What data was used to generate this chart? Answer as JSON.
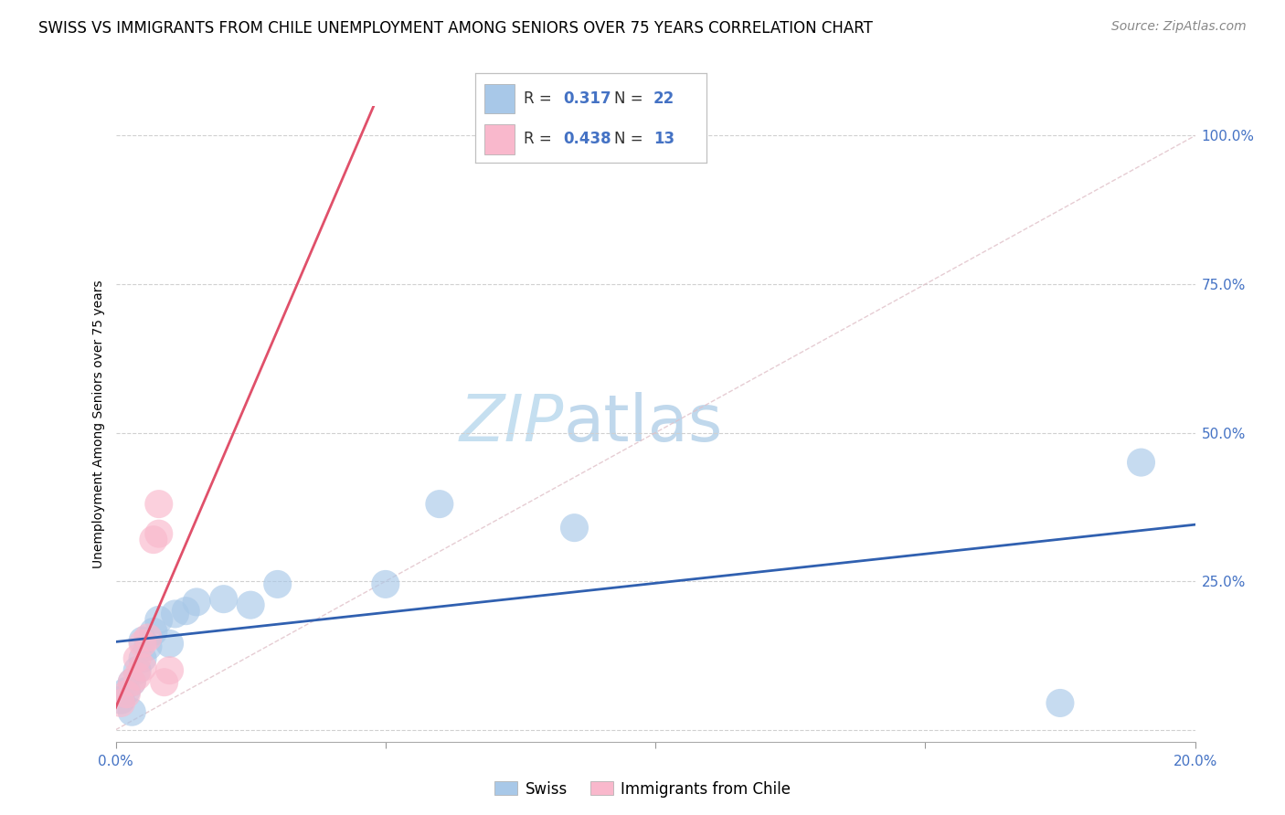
{
  "title": "SWISS VS IMMIGRANTS FROM CHILE UNEMPLOYMENT AMONG SENIORS OVER 75 YEARS CORRELATION CHART",
  "source": "Source: ZipAtlas.com",
  "ylabel_label": "Unemployment Among Seniors over 75 years",
  "xlim": [
    0.0,
    0.2
  ],
  "ylim": [
    -0.02,
    1.05
  ],
  "x_ticks": [
    0.0,
    0.05,
    0.1,
    0.15,
    0.2
  ],
  "x_tick_labels": [
    "0.0%",
    "",
    "",
    "",
    "20.0%"
  ],
  "y_ticks": [
    0.0,
    0.25,
    0.5,
    0.75,
    1.0
  ],
  "y_tick_labels": [
    "",
    "25.0%",
    "50.0%",
    "75.0%",
    "100.0%"
  ],
  "swiss_color": "#a8c8e8",
  "chile_color": "#f9b8cc",
  "swiss_line_color": "#3060b0",
  "chile_line_color": "#e0506a",
  "legend_r_n_color": "#4472c4",
  "swiss_R": "0.317",
  "swiss_N": "22",
  "chile_R": "0.438",
  "chile_N": "13",
  "watermark_zip": "ZIP",
  "watermark_atlas": "atlas",
  "title_fontsize": 12,
  "axis_label_fontsize": 10,
  "tick_fontsize": 11,
  "source_fontsize": 10,
  "watermark_fontsize": 52,
  "watermark_color_zip": "#c5dff0",
  "watermark_color_atlas": "#c0d8ec",
  "background_color": "#ffffff",
  "grid_color": "#d0d0d0",
  "tick_color": "#4472c4",
  "diag_color": "#e0c0c8",
  "swiss_x": [
    0.001,
    0.002,
    0.003,
    0.003,
    0.004,
    0.005,
    0.005,
    0.006,
    0.007,
    0.008,
    0.01,
    0.011,
    0.013,
    0.015,
    0.02,
    0.025,
    0.03,
    0.05,
    0.06,
    0.085,
    0.175,
    0.19
  ],
  "swiss_y": [
    0.05,
    0.065,
    0.03,
    0.08,
    0.1,
    0.12,
    0.15,
    0.14,
    0.165,
    0.185,
    0.145,
    0.195,
    0.2,
    0.215,
    0.22,
    0.21,
    0.245,
    0.245,
    0.38,
    0.34,
    0.045,
    0.45
  ],
  "chile_x": [
    0.001,
    0.002,
    0.003,
    0.004,
    0.004,
    0.005,
    0.005,
    0.006,
    0.007,
    0.008,
    0.008,
    0.009,
    0.01
  ],
  "chile_y": [
    0.045,
    0.06,
    0.08,
    0.09,
    0.12,
    0.105,
    0.145,
    0.155,
    0.32,
    0.33,
    0.38,
    0.08,
    0.1
  ]
}
